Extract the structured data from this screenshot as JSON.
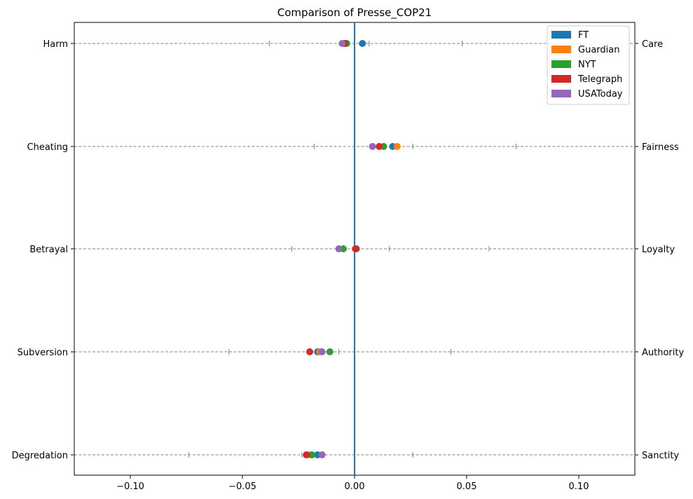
{
  "chart_data": {
    "type": "scatter",
    "title": "Comparison of Presse_COP21",
    "xlabel": "",
    "ylabel": "",
    "xlim": [
      -0.125,
      0.125
    ],
    "x_ticks": [
      -0.1,
      -0.05,
      0.0,
      0.05,
      0.1
    ],
    "x_tick_labels": [
      "−0.10",
      "−0.05",
      "0.00",
      "0.05",
      "0.10"
    ],
    "categories_left": [
      "Harm",
      "Cheating",
      "Betrayal",
      "Subversion",
      "Degredation"
    ],
    "categories_right": [
      "Care",
      "Fairness",
      "Loyalty",
      "Authority",
      "Sanctity"
    ],
    "vertical_line_x": 0.0,
    "vertical_line_color": "#1f77b4",
    "legend_position": "top-right",
    "grid": false,
    "reference_ticks": [
      [
        -0.038,
        0.0065,
        0.048
      ],
      [
        -0.018,
        0.026,
        0.072
      ],
      [
        -0.028,
        0.0155,
        0.06
      ],
      [
        -0.056,
        -0.007,
        0.043
      ],
      [
        -0.074,
        -0.0235,
        0.026
      ]
    ],
    "series": [
      {
        "name": "FT",
        "color": "#1f77b4",
        "values": [
          0.0035,
          0.017,
          0.0008,
          -0.0165,
          -0.0165
        ]
      },
      {
        "name": "Guardian",
        "color": "#ff7f0e",
        "values": [
          -0.004,
          0.019,
          0.0003,
          -0.0155,
          -0.02
        ]
      },
      {
        "name": "NYT",
        "color": "#2ca02c",
        "values": [
          -0.0035,
          0.013,
          -0.005,
          -0.011,
          -0.019
        ]
      },
      {
        "name": "Telegraph",
        "color": "#d62728",
        "values": [
          -0.0045,
          0.011,
          0.0005,
          -0.02,
          -0.0215
        ]
      },
      {
        "name": "USAToday",
        "color": "#9467bd",
        "values": [
          -0.0055,
          0.008,
          -0.007,
          -0.0145,
          -0.0145
        ]
      }
    ]
  }
}
